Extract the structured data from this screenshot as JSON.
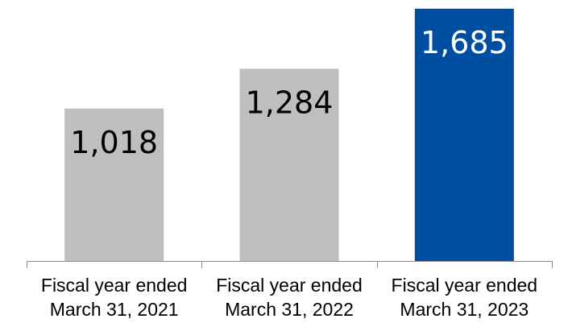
{
  "chart_data": {
    "type": "bar",
    "categories": [
      [
        "Fiscal year ended",
        "March 31, 2021"
      ],
      [
        "Fiscal year ended",
        "March 31, 2022"
      ],
      [
        "Fiscal year ended",
        "March 31, 2023"
      ]
    ],
    "values": [
      1018,
      1284,
      1685
    ],
    "value_labels": [
      "1,018",
      "1,284",
      "1,685"
    ],
    "colors": [
      "#bfbfbf",
      "#bfbfbf",
      "#004ea2"
    ],
    "label_colors": [
      "#000000",
      "#000000",
      "#ffffff"
    ],
    "title": "",
    "xlabel": "",
    "ylabel": "",
    "ylim": [
      0,
      1700
    ],
    "grid": false,
    "legend": "none"
  }
}
